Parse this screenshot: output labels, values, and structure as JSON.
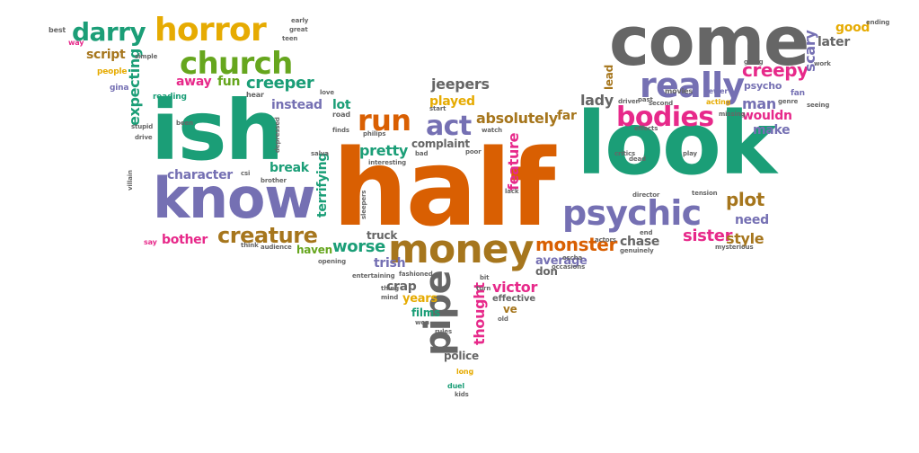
{
  "palette": {
    "green": "#1b9e77",
    "orange": "#d95f02",
    "purple": "#7570b3",
    "pink": "#e7298a",
    "lime": "#66a61e",
    "gold": "#e6ab02",
    "brown": "#a6761d",
    "gray": "#666666"
  },
  "words": [
    {
      "text": "half",
      "color": "orange"
    },
    {
      "text": "look",
      "color": "green"
    },
    {
      "text": "ish",
      "color": "green"
    },
    {
      "text": "come",
      "color": "gray"
    },
    {
      "text": "know",
      "color": "purple"
    },
    {
      "text": "money",
      "color": "brown"
    },
    {
      "text": "psychic",
      "color": "purple"
    },
    {
      "text": "really",
      "color": "purple"
    },
    {
      "text": "church",
      "color": "lime"
    },
    {
      "text": "horror",
      "color": "gold"
    },
    {
      "text": "darry",
      "color": "green"
    },
    {
      "text": "pipe",
      "color": "gray"
    },
    {
      "text": "run",
      "color": "orange"
    },
    {
      "text": "bodies",
      "color": "pink"
    },
    {
      "text": "act",
      "color": "purple"
    },
    {
      "text": "creature",
      "color": "brown"
    },
    {
      "text": "creepy",
      "color": "pink"
    },
    {
      "text": "monster",
      "color": "orange"
    },
    {
      "text": "creeper",
      "color": "green"
    },
    {
      "text": "plot",
      "color": "brown"
    },
    {
      "text": "sister",
      "color": "pink"
    },
    {
      "text": "absolutely",
      "color": "brown"
    },
    {
      "text": "feature",
      "color": "pink"
    },
    {
      "text": "scary",
      "color": "purple"
    },
    {
      "text": "expecting",
      "color": "green"
    },
    {
      "text": "terrifying",
      "color": "green"
    },
    {
      "text": "thought",
      "color": "pink"
    },
    {
      "text": "worse",
      "color": "green"
    },
    {
      "text": "victor",
      "color": "pink"
    },
    {
      "text": "jeepers",
      "color": "gray"
    },
    {
      "text": "played",
      "color": "gold"
    },
    {
      "text": "pretty",
      "color": "green"
    },
    {
      "text": "lady",
      "color": "gray"
    },
    {
      "text": "man",
      "color": "purple"
    },
    {
      "text": "later",
      "color": "gray"
    },
    {
      "text": "style",
      "color": "brown"
    },
    {
      "text": "chase",
      "color": "gray"
    },
    {
      "text": "character",
      "color": "purple"
    },
    {
      "text": "bother",
      "color": "pink"
    },
    {
      "text": "break",
      "color": "green"
    },
    {
      "text": "instead",
      "color": "purple"
    },
    {
      "text": "script",
      "color": "brown"
    },
    {
      "text": "fun",
      "color": "lime"
    },
    {
      "text": "away",
      "color": "pink"
    },
    {
      "text": "lead",
      "color": "brown"
    },
    {
      "text": "good",
      "color": "gold"
    },
    {
      "text": "wouldn",
      "color": "pink"
    },
    {
      "text": "make",
      "color": "purple"
    },
    {
      "text": "need",
      "color": "purple"
    },
    {
      "text": "far",
      "color": "brown"
    },
    {
      "text": "crap",
      "color": "gray"
    },
    {
      "text": "years",
      "color": "gold"
    },
    {
      "text": "films",
      "color": "green"
    },
    {
      "text": "ve",
      "color": "brown"
    },
    {
      "text": "lot",
      "color": "green"
    },
    {
      "text": "haven",
      "color": "lime"
    },
    {
      "text": "trish",
      "color": "purple"
    },
    {
      "text": "truck",
      "color": "gray"
    },
    {
      "text": "average",
      "color": "purple"
    },
    {
      "text": "don",
      "color": "gray"
    },
    {
      "text": "complaint",
      "color": "gray"
    },
    {
      "text": "police",
      "color": "gray"
    },
    {
      "text": "psycho",
      "color": "purple"
    },
    {
      "text": "effective",
      "color": "gray"
    },
    {
      "text": "reading",
      "color": "green"
    },
    {
      "text": "people",
      "color": "gold"
    },
    {
      "text": "gina",
      "color": "purple"
    },
    {
      "text": "fan",
      "color": "purple"
    },
    {
      "text": "movies",
      "color": "gray"
    },
    {
      "text": "sewer",
      "color": "purple"
    },
    {
      "text": "acting",
      "color": "gold"
    },
    {
      "text": "hear",
      "color": "gray"
    },
    {
      "text": "road",
      "color": "gray"
    },
    {
      "text": "say",
      "color": "pink"
    },
    {
      "text": "long",
      "color": "gold"
    },
    {
      "text": "duel",
      "color": "green"
    },
    {
      "text": "best",
      "color": "gray"
    },
    {
      "text": "way",
      "color": "pink"
    },
    {
      "text": "simple",
      "color": "gray"
    },
    {
      "text": "great",
      "color": "gray"
    },
    {
      "text": "early",
      "color": "gray"
    },
    {
      "text": "teen",
      "color": "gray"
    },
    {
      "text": "start",
      "color": "gray"
    },
    {
      "text": "watch",
      "color": "gray"
    },
    {
      "text": "bad",
      "color": "gray"
    },
    {
      "text": "poor",
      "color": "gray"
    },
    {
      "text": "lack",
      "color": "gray"
    },
    {
      "text": "dead",
      "color": "gray"
    },
    {
      "text": "play",
      "color": "gray"
    },
    {
      "text": "effects",
      "color": "gray"
    },
    {
      "text": "director",
      "color": "gray"
    },
    {
      "text": "tension",
      "color": "gray"
    },
    {
      "text": "actors",
      "color": "gray"
    },
    {
      "text": "genuinely",
      "color": "gray"
    },
    {
      "text": "end",
      "color": "gray"
    },
    {
      "text": "critics",
      "color": "gray"
    },
    {
      "text": "mysterious",
      "color": "gray"
    },
    {
      "text": "ending",
      "color": "gray"
    },
    {
      "text": "going",
      "color": "gray"
    },
    {
      "text": "seeing",
      "color": "gray"
    },
    {
      "text": "work",
      "color": "gray"
    },
    {
      "text": "genre",
      "color": "gray"
    },
    {
      "text": "missing",
      "color": "gray"
    },
    {
      "text": "second",
      "color": "gray"
    },
    {
      "text": "past",
      "color": "gray"
    },
    {
      "text": "driver",
      "color": "gray"
    },
    {
      "text": "love",
      "color": "gray"
    },
    {
      "text": "finds",
      "color": "gray"
    },
    {
      "text": "philips",
      "color": "gray"
    },
    {
      "text": "interesting",
      "color": "gray"
    },
    {
      "text": "csi",
      "color": "gray"
    },
    {
      "text": "brother",
      "color": "gray"
    },
    {
      "text": "think",
      "color": "gray"
    },
    {
      "text": "audience",
      "color": "gray"
    },
    {
      "text": "opening",
      "color": "gray"
    },
    {
      "text": "salva",
      "color": "gray"
    },
    {
      "text": "entertaining",
      "color": "gray"
    },
    {
      "text": "fashioned",
      "color": "gray"
    },
    {
      "text": "thing",
      "color": "gray"
    },
    {
      "text": "mind",
      "color": "gray"
    },
    {
      "text": "bit",
      "color": "gray"
    },
    {
      "text": "turn",
      "color": "gray"
    },
    {
      "text": "occasions",
      "color": "gray"
    },
    {
      "text": "escha",
      "color": "gray"
    },
    {
      "text": "won",
      "color": "gray"
    },
    {
      "text": "old",
      "color": "gray"
    },
    {
      "text": "rules",
      "color": "gray"
    },
    {
      "text": "stupid",
      "color": "gray"
    },
    {
      "text": "drive",
      "color": "gray"
    },
    {
      "text": "villain",
      "color": "gray"
    },
    {
      "text": "been",
      "color": "gray"
    },
    {
      "text": "depressed",
      "color": "gray"
    },
    {
      "text": "sleepers",
      "color": "gray"
    },
    {
      "text": "kids",
      "color": "gray"
    }
  ]
}
